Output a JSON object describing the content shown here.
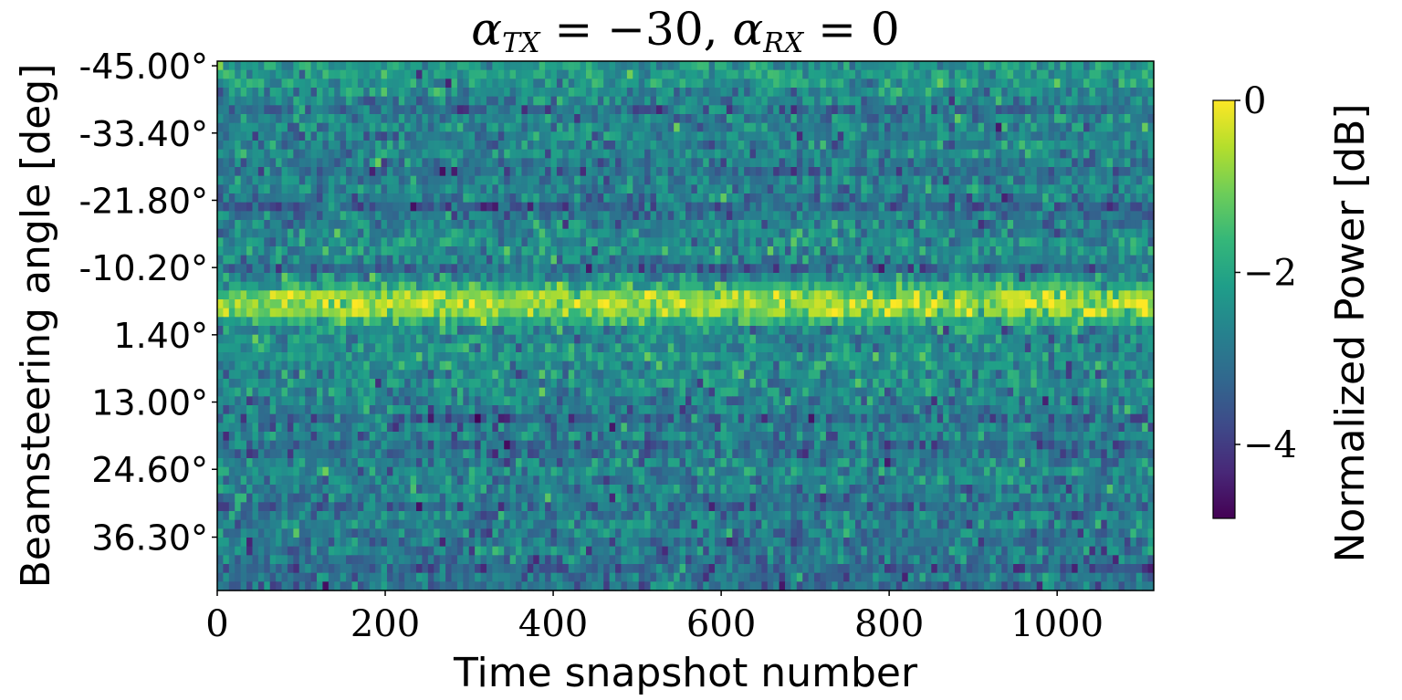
{
  "chart_data": {
    "type": "heatmap",
    "title": {
      "alpha": "α",
      "tx_sub": "TX",
      "tx_value": "= −30,",
      "rx_sub": "RX",
      "rx_value": "= 0"
    },
    "xlabel": "Time snapshot number",
    "ylabel": "Beamsteering angle [deg]",
    "colorbar_label": "Normalized Power [dB]",
    "xlim": [
      0,
      1115
    ],
    "ylim": [
      -45.8,
      45.5
    ],
    "x_ticks": [
      0,
      200,
      400,
      600,
      800,
      1000
    ],
    "x_tick_labels": [
      "0",
      "200",
      "400",
      "600",
      "800",
      "1000"
    ],
    "y_ticks": [
      -45.0,
      -33.4,
      -21.8,
      -10.2,
      1.4,
      13.0,
      24.6,
      36.3
    ],
    "y_tick_labels": [
      "-45.00°",
      "-33.40°",
      "-21.80°",
      "-10.20°",
      "1.40°",
      "13.00°",
      "24.60°",
      "36.30°"
    ],
    "colorbar_range": [
      -4.86,
      0
    ],
    "colorbar_ticks": [
      0,
      -2,
      -4
    ],
    "colorbar_tick_labels": [
      "0",
      "−2",
      "−4"
    ],
    "colormap": "viridis",
    "row_mean_db": [
      -2.3,
      -2.2,
      -2.3,
      -2.5,
      -2.7,
      -3.1,
      -2.7,
      -2.6,
      -2.8,
      -2.7,
      -2.6,
      -2.8,
      -3.1,
      -2.7,
      -2.6,
      -2.8,
      -3.3,
      -2.9,
      -2.7,
      -2.6,
      -2.5,
      -2.4,
      -2.7,
      -3.2,
      -2.5,
      -1.8,
      -0.9,
      -0.6,
      -0.9,
      -1.9,
      -2.5,
      -2.6,
      -2.5,
      -2.4,
      -2.5,
      -2.6,
      -2.5,
      -2.6,
      -2.7,
      -2.8,
      -3.2,
      -2.8,
      -2.7,
      -3.1,
      -3.0,
      -2.7,
      -2.6,
      -2.7,
      -2.8,
      -2.9,
      -3.1,
      -2.8,
      -2.7,
      -2.8,
      -2.9,
      -2.8,
      -3.0,
      -3.3,
      -3.0,
      -3.1
    ],
    "noise_std_db": 0.5,
    "grid": false
  }
}
